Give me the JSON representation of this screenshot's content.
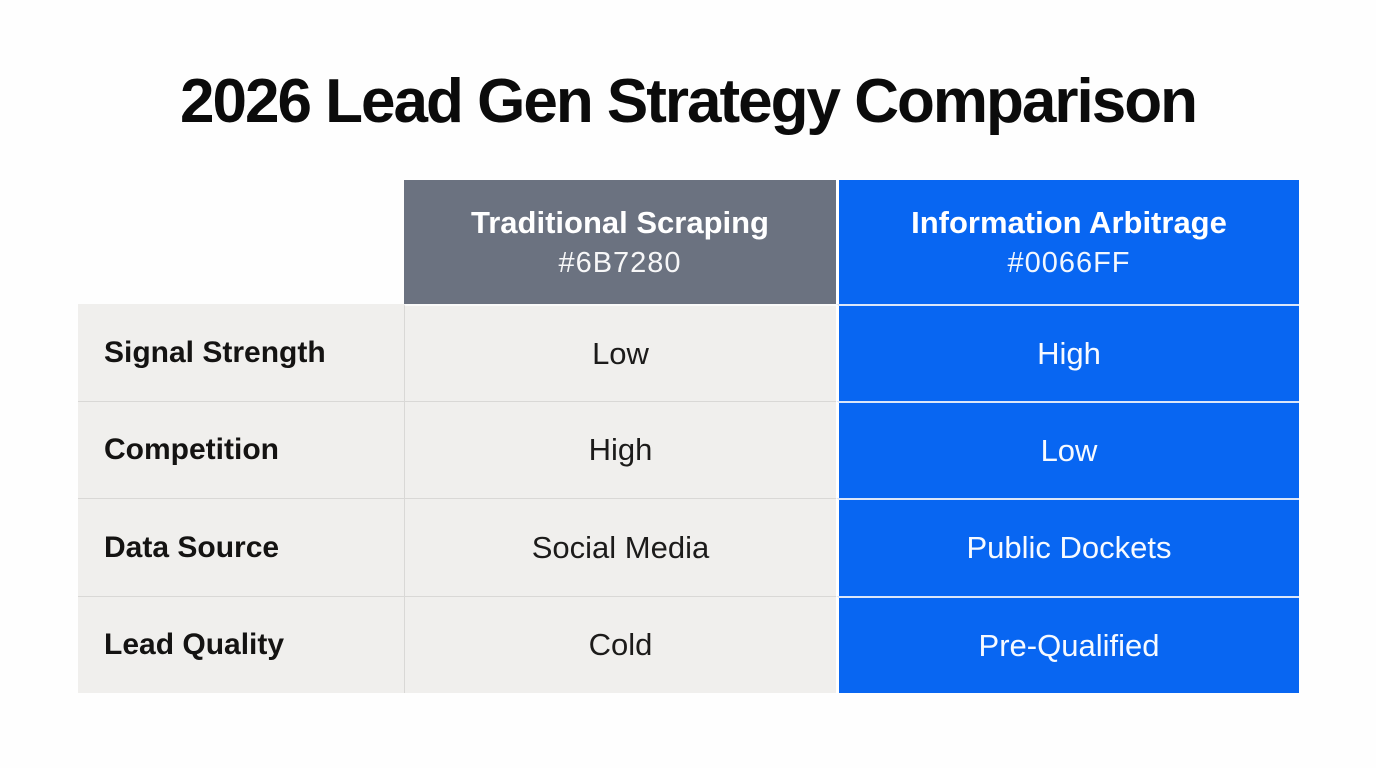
{
  "title": "2026 Lead Gen Strategy Comparison",
  "colors": {
    "page_bg": "#FEFEFE",
    "title_text": "#0B0B0B",
    "light_cell_bg": "#F0EFED",
    "traditional_bg": "#6B7280",
    "arbitrage_bg": "#0866F2",
    "header_text": "#FFFFFF",
    "blue_cell_text": "#F7FAFF",
    "label_text": "#141312",
    "value_text": "#1C1B1A",
    "grid_line": "#D9D8D6",
    "blue_divider": "#DBE6F9"
  },
  "table": {
    "columns": [
      {
        "label": "Traditional Scraping",
        "hex_caption": "#6B7280"
      },
      {
        "label": "Information Arbitrage",
        "hex_caption": "#0066FF"
      }
    ],
    "rows": [
      {
        "label": "Signal Strength",
        "traditional": "Low",
        "arbitrage": "High"
      },
      {
        "label": "Competition",
        "traditional": "High",
        "arbitrage": "Low"
      },
      {
        "label": "Data Source",
        "traditional": "Social Media",
        "arbitrage": "Public Dockets"
      },
      {
        "label": "Lead Quality",
        "traditional": "Cold",
        "arbitrage": "Pre-Qualified"
      }
    ]
  },
  "chart_data": {
    "type": "table",
    "title": "2026 Lead Gen Strategy Comparison",
    "columns": [
      "",
      "Traditional Scraping #6B7280",
      "Information Arbitrage #0066FF"
    ],
    "rows": [
      [
        "Signal Strength",
        "Low",
        "High"
      ],
      [
        "Competition",
        "High",
        "Low"
      ],
      [
        "Data Source",
        "Social Media",
        "Public Dockets"
      ],
      [
        "Lead Quality",
        "Cold",
        "Pre-Qualified"
      ]
    ],
    "column_colors": {
      "Traditional Scraping": "#6B7280",
      "Information Arbitrage": "#0066FF"
    },
    "layout": {
      "grid": "on",
      "header_row": "colored",
      "value_alignment": "center"
    }
  }
}
